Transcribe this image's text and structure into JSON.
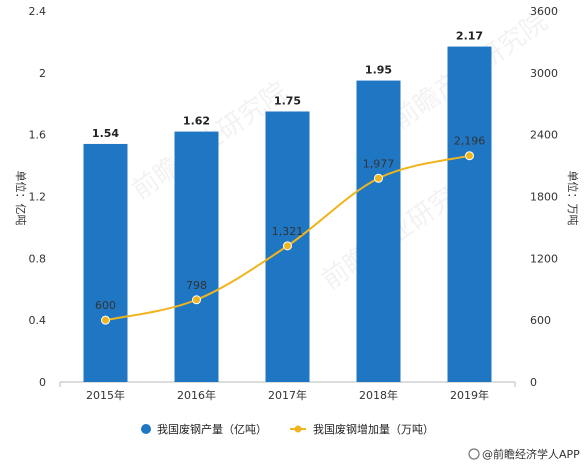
{
  "chart_data": {
    "type": "bar+line",
    "categories": [
      "2015年",
      "2016年",
      "2017年",
      "2018年",
      "2019年"
    ],
    "series": [
      {
        "name": "我国废钢产量（亿吨）",
        "type": "bar",
        "axis": "left",
        "values": [
          1.54,
          1.62,
          1.75,
          1.95,
          2.17
        ],
        "labels": [
          "1.54",
          "1.62",
          "1.75",
          "1.95",
          "2.17"
        ],
        "color": "#1f77c4"
      },
      {
        "name": "我国废钢增加量（万吨）",
        "type": "line",
        "axis": "right",
        "values": [
          600,
          798,
          1321,
          1977,
          2196
        ],
        "labels": [
          "600",
          "798",
          "1,321",
          "1,977",
          "2,196"
        ],
        "color": "#f0b41e"
      }
    ],
    "y_left": {
      "label": "单位：亿吨",
      "ylim": [
        0,
        2.4
      ],
      "ticks": [
        "0",
        "0.4",
        "0.8",
        "1.2",
        "1.6",
        "2",
        "2.4"
      ]
    },
    "y_right": {
      "label": "单位：万吨",
      "ylim": [
        0,
        3600
      ],
      "ticks": [
        "0",
        "600",
        "1200",
        "1800",
        "2400",
        "3000",
        "3600"
      ]
    },
    "grid": false,
    "legend": "bottom-center"
  },
  "source": "@前瞻经济学人APP",
  "watermark": "前瞻产业研究院"
}
